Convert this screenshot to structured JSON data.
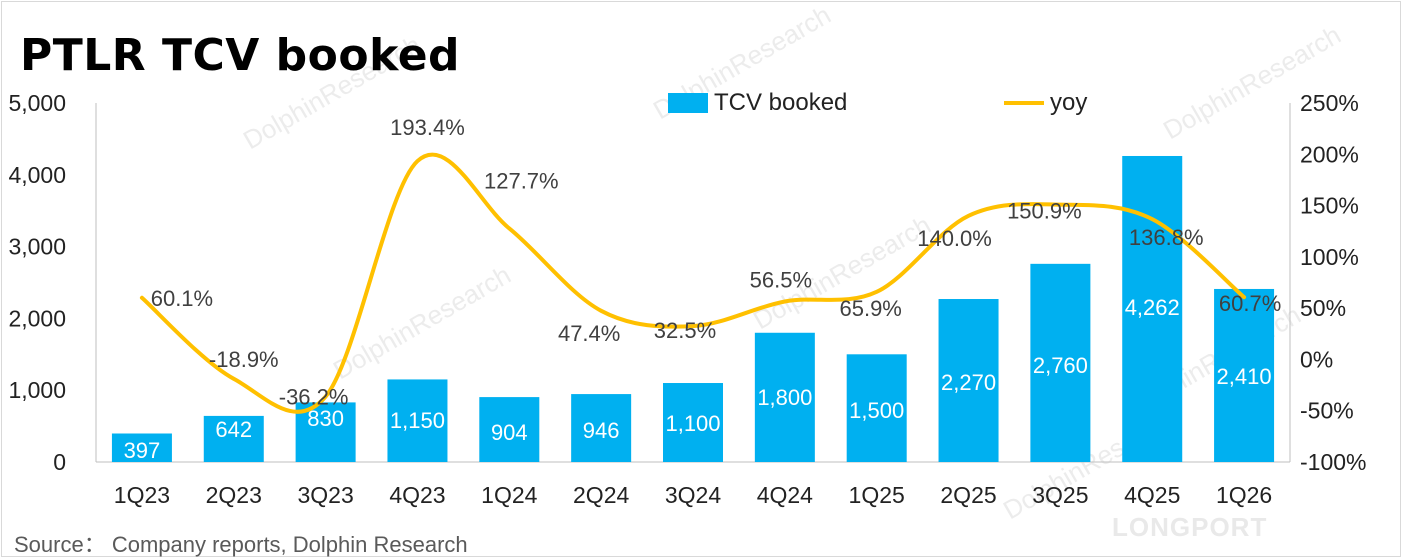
{
  "title": "PTLR TCV booked",
  "source": "Source： Company reports, Dolphin Research",
  "watermarks": {
    "text": "DolphinResearch",
    "brand": "LONGPORT"
  },
  "colors": {
    "bar": "#00b0f0",
    "line": "#ffc000",
    "bar_label": "#ffffff",
    "line_label": "#404040",
    "axis_text": "#222222"
  },
  "chart_data": {
    "type": "bar",
    "categories": [
      "1Q23",
      "2Q23",
      "3Q23",
      "4Q23",
      "1Q24",
      "2Q24",
      "3Q24",
      "4Q24",
      "1Q25",
      "2Q25",
      "3Q25",
      "4Q25",
      "1Q26"
    ],
    "series": [
      {
        "name": "TCV booked",
        "type": "bar",
        "axis": "left",
        "values": [
          397,
          642,
          830,
          1150,
          904,
          946,
          1100,
          1800,
          1500,
          2270,
          2760,
          4262,
          2410
        ],
        "data_labels": [
          "397",
          "642",
          "830",
          "1,150",
          "904",
          "946",
          "1,100",
          "1,800",
          "1,500",
          "2,270",
          "2,760",
          "4,262",
          "2,410"
        ]
      },
      {
        "name": "yoy",
        "type": "line",
        "axis": "right",
        "values": [
          60.1,
          -18.9,
          -36.2,
          193.4,
          127.7,
          47.4,
          32.5,
          56.5,
          65.9,
          140.0,
          150.9,
          136.8,
          60.7
        ],
        "data_labels": [
          "60.1%",
          "-18.9%",
          "-36.2%",
          "193.4%",
          "127.7%",
          "47.4%",
          "32.5%",
          "56.5%",
          "65.9%",
          "140.0%",
          "150.9%",
          "136.8%",
          "60.7%"
        ]
      }
    ],
    "y_left": {
      "range": [
        0,
        5000
      ],
      "ticks": [
        0,
        1000,
        2000,
        3000,
        4000,
        5000
      ],
      "tick_labels": [
        "0",
        "1,000",
        "2,000",
        "3,000",
        "4,000",
        "5,000"
      ]
    },
    "y_right": {
      "range": [
        -100,
        250
      ],
      "ticks": [
        -100,
        -50,
        0,
        50,
        100,
        150,
        200,
        250
      ],
      "tick_labels": [
        "-100%",
        "-50%",
        "0%",
        "50%",
        "100%",
        "150%",
        "200%",
        "250%"
      ]
    },
    "grid": false,
    "legend_position": "top"
  }
}
